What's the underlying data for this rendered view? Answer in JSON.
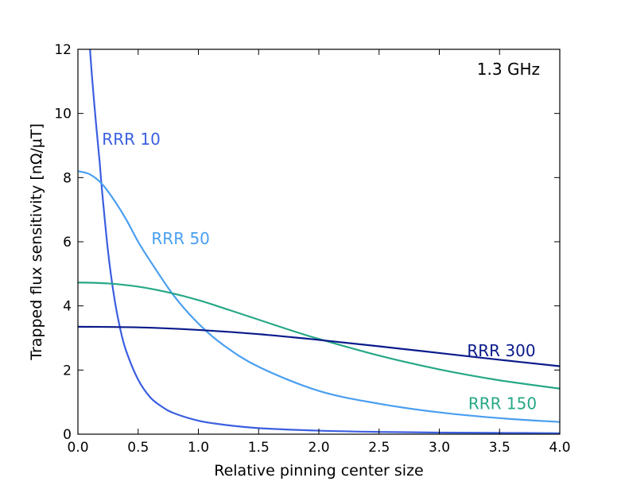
{
  "chart_data": {
    "type": "line",
    "annotation": "1.3 GHz",
    "xlabel": "Relative pinning center size",
    "ylabel": "Trapped flux sensitivity [nΩ/μT]",
    "xlim": [
      0.0,
      4.0
    ],
    "ylim": [
      0,
      12
    ],
    "xticks": [
      "0.0",
      "0.5",
      "1.0",
      "1.5",
      "2.0",
      "2.5",
      "3.0",
      "3.5",
      "4.0"
    ],
    "yticks": [
      "0",
      "2",
      "4",
      "6",
      "8",
      "10",
      "12"
    ],
    "series": [
      {
        "name": "RRR 10",
        "color": "#3b5fe0",
        "x": [
          0.1,
          0.12,
          0.15,
          0.18,
          0.2,
          0.25,
          0.3,
          0.35,
          0.4,
          0.5,
          0.6,
          0.7,
          0.8,
          1.0,
          1.2,
          1.5,
          2.0,
          2.5,
          3.0,
          3.5,
          4.0
        ],
        "y": [
          12.0,
          11.0,
          9.7,
          8.5,
          7.6,
          5.7,
          4.3,
          3.3,
          2.6,
          1.7,
          1.15,
          0.85,
          0.65,
          0.42,
          0.3,
          0.19,
          0.11,
          0.07,
          0.05,
          0.04,
          0.03
        ]
      },
      {
        "name": "RRR 50",
        "color": "#4a9ff0",
        "x": [
          0.0,
          0.1,
          0.2,
          0.3,
          0.4,
          0.5,
          0.6,
          0.8,
          1.0,
          1.2,
          1.5,
          2.0,
          2.5,
          3.0,
          3.5,
          4.0
        ],
        "y": [
          8.2,
          8.1,
          7.8,
          7.3,
          6.7,
          6.0,
          5.4,
          4.3,
          3.45,
          2.8,
          2.1,
          1.35,
          0.95,
          0.68,
          0.5,
          0.38
        ]
      },
      {
        "name": "RRR 150",
        "color": "#26a886",
        "x": [
          0.0,
          0.25,
          0.5,
          0.75,
          1.0,
          1.25,
          1.5,
          1.75,
          2.0,
          2.5,
          3.0,
          3.5,
          4.0
        ],
        "y": [
          4.73,
          4.7,
          4.6,
          4.42,
          4.18,
          3.88,
          3.57,
          3.26,
          2.97,
          2.45,
          2.02,
          1.68,
          1.42
        ]
      },
      {
        "name": "RRR 300",
        "color": "#0a1a8a",
        "x": [
          0.0,
          0.5,
          1.0,
          1.5,
          2.0,
          2.5,
          3.0,
          3.5,
          4.0
        ],
        "y": [
          3.35,
          3.33,
          3.25,
          3.12,
          2.94,
          2.74,
          2.53,
          2.32,
          2.12
        ]
      }
    ],
    "labels": [
      {
        "text": "RRR 10",
        "series": 0,
        "x": 0.2,
        "y": 9.2
      },
      {
        "text": "RRR 50",
        "series": 1,
        "x": 0.61,
        "y": 6.1
      },
      {
        "text": "RRR 300",
        "series": 3,
        "x": 3.23,
        "y": 2.6
      },
      {
        "text": "RRR 150",
        "series": 2,
        "x": 3.24,
        "y": 0.95
      }
    ]
  }
}
